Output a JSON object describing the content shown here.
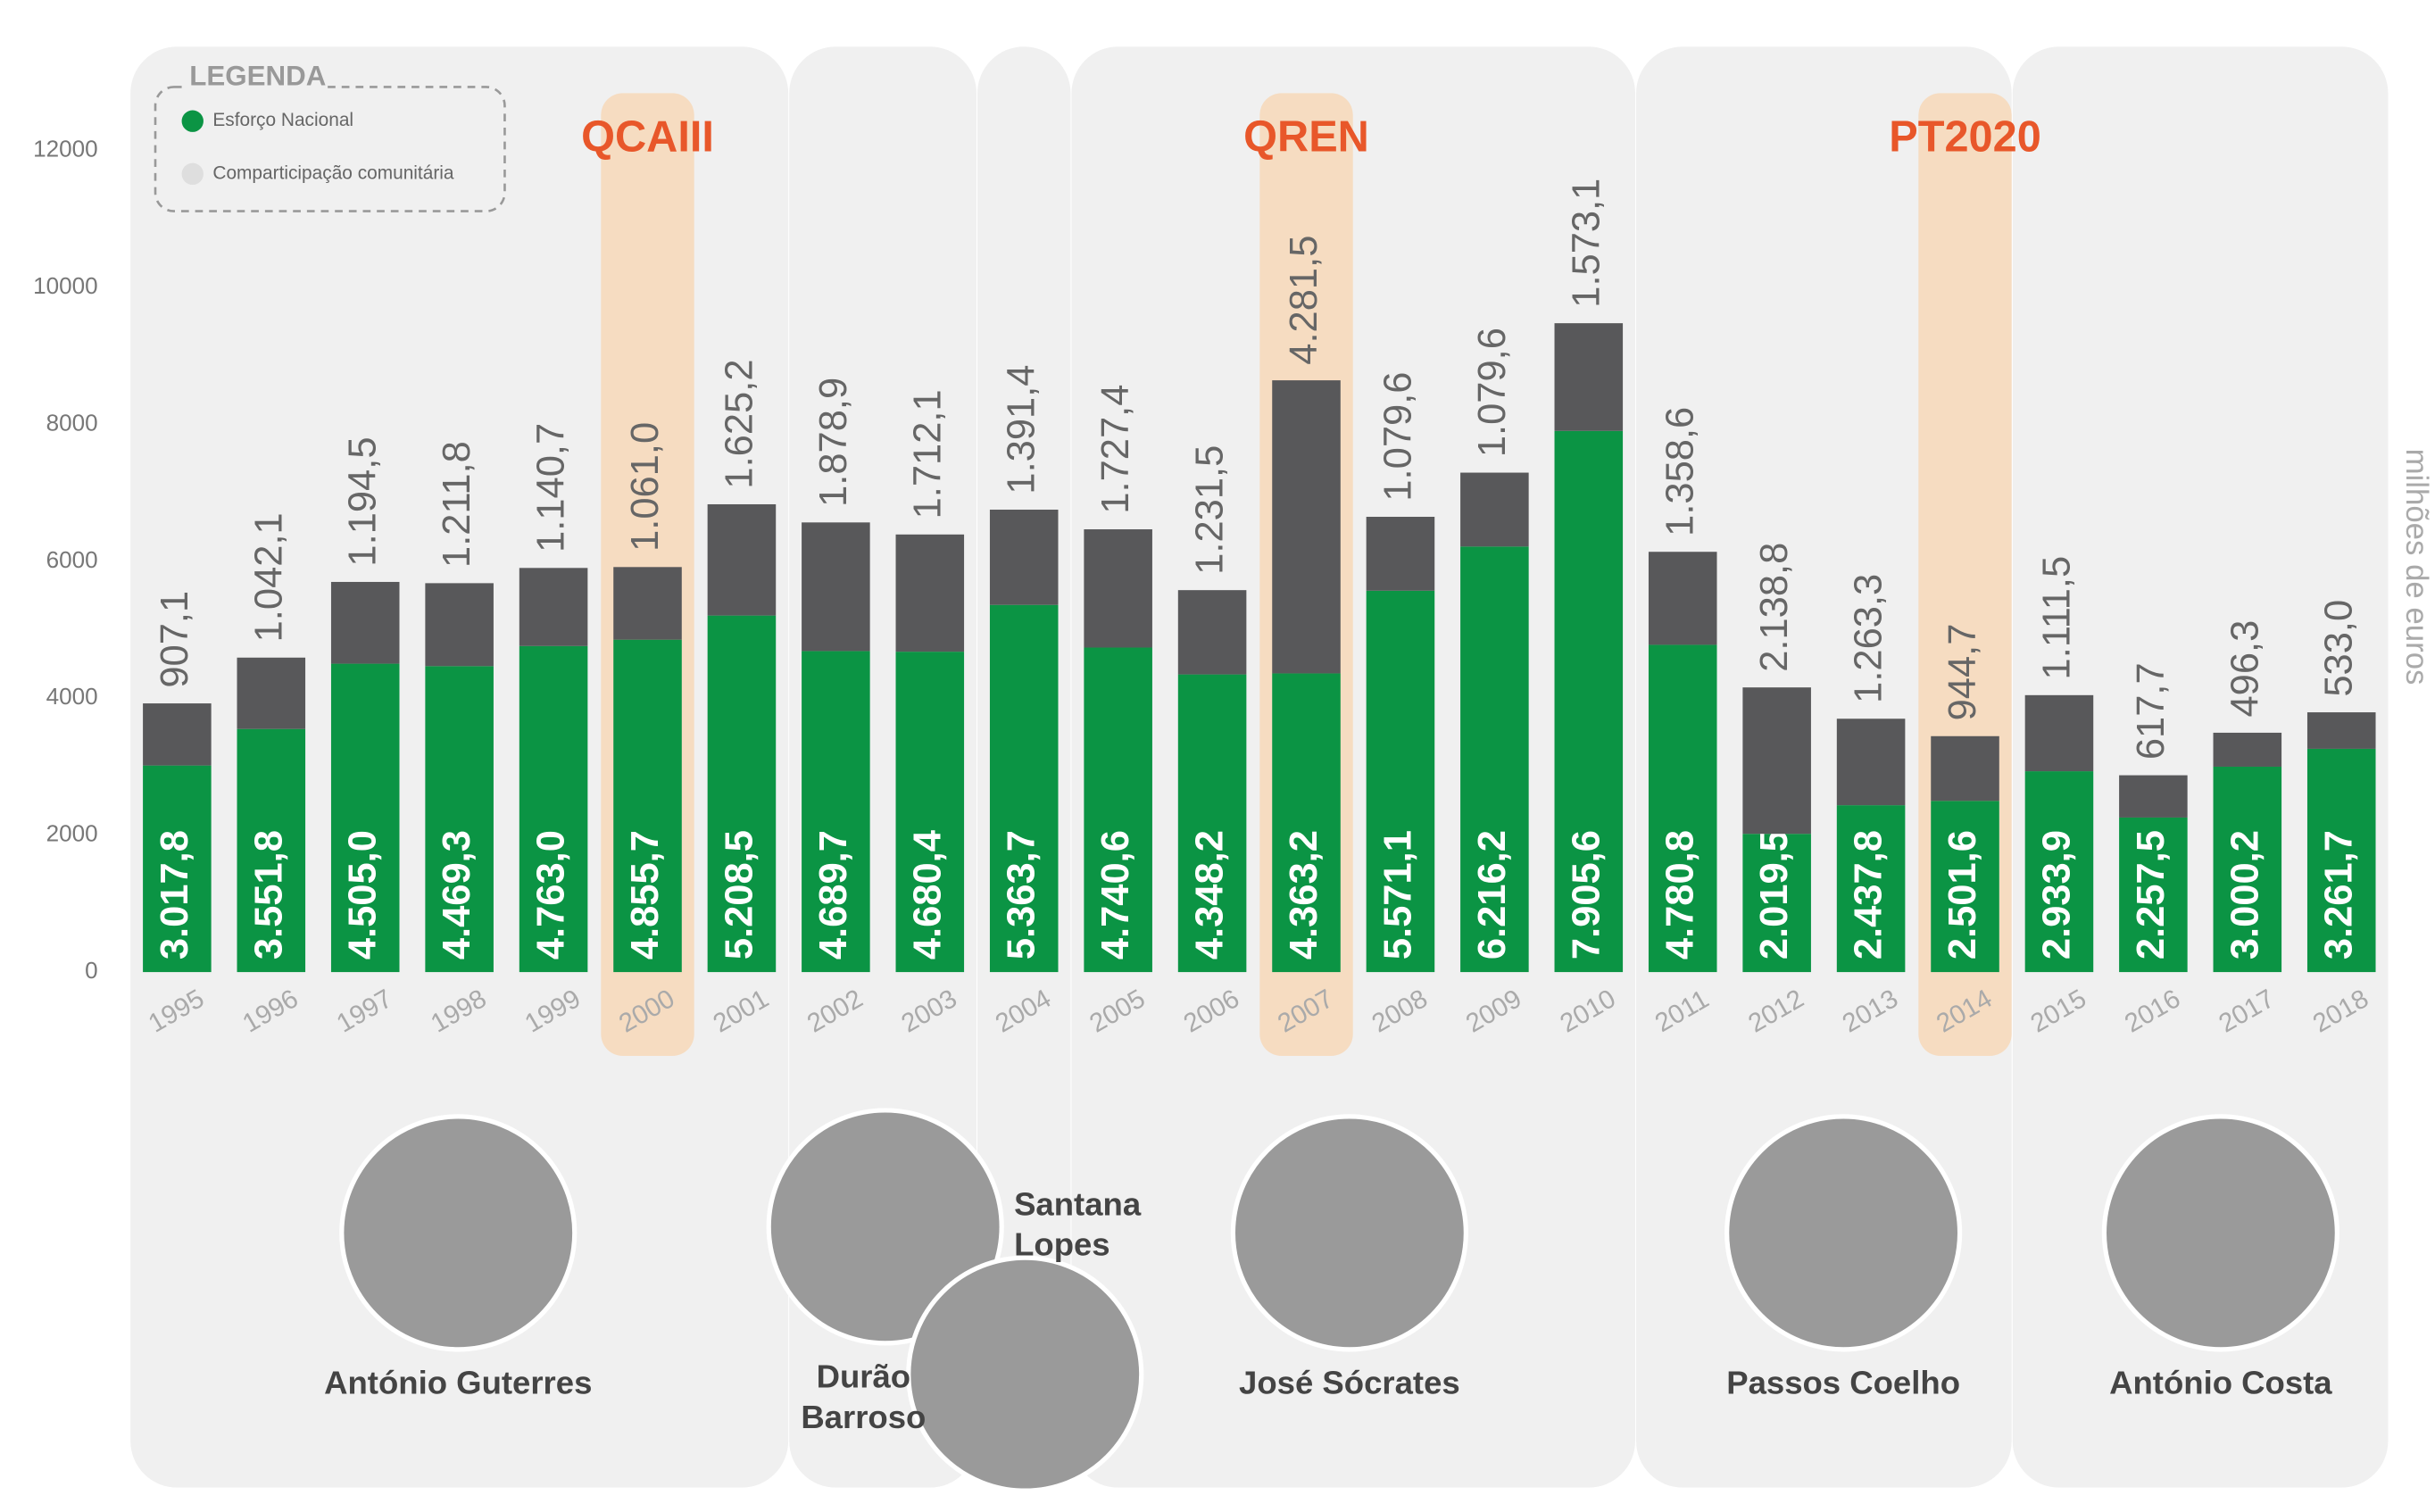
{
  "chart_data": {
    "type": "stacked_bar",
    "legend_title": "LEGENDA",
    "y_label": "milhões de euros",
    "categories": [
      "1995",
      "1996",
      "1997",
      "1998",
      "1999",
      "2000",
      "2001",
      "2002",
      "2003",
      "2004",
      "2005",
      "2006",
      "2007",
      "2008",
      "2009",
      "2010",
      "2011",
      "2012",
      "2013",
      "2014",
      "2015",
      "2016",
      "2017",
      "2018"
    ],
    "series": [
      {
        "name": "Esforço Nacional",
        "color": "#0b9444",
        "values": [
          3017.8,
          3551.8,
          4505.0,
          4469.3,
          4763.0,
          4855.7,
          5208.5,
          4689.7,
          4680.4,
          5363.7,
          4740.6,
          4348.2,
          4363.2,
          5571.1,
          6216.2,
          7905.6,
          4780.8,
          2019.5,
          2437.8,
          2501.6,
          2933.9,
          2257.5,
          3000.2,
          3261.7
        ],
        "value_labels": [
          "3.017,8",
          "3.551,8",
          "4.505,0",
          "4.469,3",
          "4.763,0",
          "4.855,7",
          "5.208,5",
          "4.689,7",
          "4.680,4",
          "5.363,7",
          "4.740,6",
          "4.348,2",
          "4.363,2",
          "5.571,1",
          "6.216,2",
          "7.905,6",
          "4.780,8",
          "2.019,5",
          "2.437,8",
          "2.501,6",
          "2.933,9",
          "2.257,5",
          "3.000,2",
          "3.261,7"
        ]
      },
      {
        "name": "Comparticipação comunitária",
        "color": "#58585a",
        "values": [
          907.1,
          1042.1,
          1194.5,
          1211.8,
          1140.7,
          1061.0,
          1625.2,
          1878.9,
          1712.1,
          1391.4,
          1727.4,
          1231.5,
          4281.5,
          1079.6,
          1079.6,
          1573.1,
          1358.6,
          2138.8,
          1263.3,
          944.7,
          1111.5,
          617.7,
          496.3,
          533.0
        ],
        "value_labels": [
          "907,1",
          "1.042,1",
          "1.194,5",
          "1.211,8",
          "1.140,7",
          "1.061,0",
          "1.625,2",
          "1.878,9",
          "1.712,1",
          "1.391,4",
          "1.727,4",
          "1.231,5",
          "4.281,5",
          "1.079,6",
          "1.079,6",
          "1.573,1",
          "1.358,6",
          "2.138,8",
          "1.263,3",
          "944,7",
          "1.111,5",
          "617,7",
          "496,3",
          "533,0"
        ]
      }
    ],
    "ylim": [
      0,
      12000
    ],
    "yticks": [
      0,
      2000,
      4000,
      6000,
      8000,
      10000,
      12000
    ],
    "programmes": [
      {
        "text": "QCAIII",
        "category": "2000"
      },
      {
        "text": "QREN",
        "category": "2007"
      },
      {
        "text": "PT2020",
        "category": "2014"
      }
    ],
    "governments": [
      {
        "name_lines": [
          "António Guterres"
        ]
      },
      {
        "name_lines": [
          "Durão",
          "Barroso"
        ]
      },
      {
        "name_lines": [
          "Santana",
          "Lopes"
        ]
      },
      {
        "name_lines": [
          "José Sócrates"
        ]
      },
      {
        "name_lines": [
          "Passos Coelho"
        ]
      },
      {
        "name_lines": [
          "António Costa"
        ]
      }
    ]
  }
}
